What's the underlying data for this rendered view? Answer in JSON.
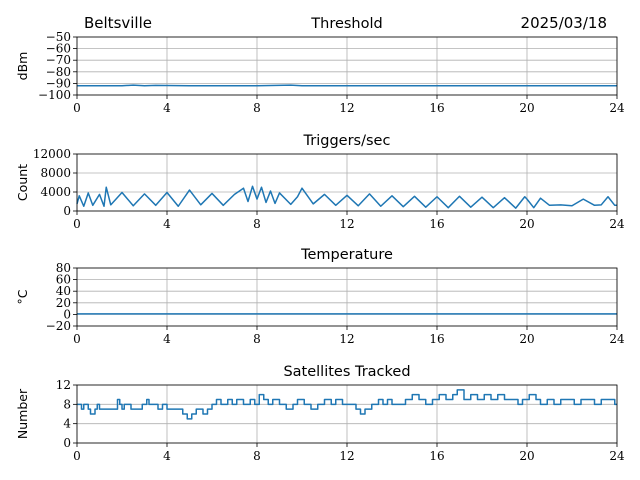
{
  "header": {
    "left": "Beltsville",
    "right": "2025/03/18"
  },
  "chart_data": [
    {
      "type": "line",
      "title": "Threshold",
      "ylabel": "dBm",
      "xlim": [
        0,
        24
      ],
      "ylim": [
        -100,
        -50
      ],
      "xticks": [
        0,
        4,
        8,
        12,
        16,
        20,
        24
      ],
      "yticks": [
        -100,
        -90,
        -80,
        -70,
        -60,
        -50
      ],
      "grid": true,
      "series": [
        {
          "x": [
            0,
            2,
            2.5,
            3,
            3.5,
            5,
            8,
            9.5,
            10,
            12,
            16,
            20,
            24
          ],
          "y": [
            -92,
            -92,
            -91.5,
            -92,
            -91.7,
            -92,
            -92,
            -91.5,
            -92,
            -92,
            -92,
            -92,
            -92
          ]
        }
      ]
    },
    {
      "type": "line",
      "title": "Triggers/sec",
      "ylabel": "Count",
      "xlim": [
        0,
        24
      ],
      "ylim": [
        0,
        12000
      ],
      "xticks": [
        0,
        4,
        8,
        12,
        16,
        20,
        24
      ],
      "yticks": [
        0,
        4000,
        8000,
        12000
      ],
      "grid": true,
      "series": [
        {
          "x": [
            0,
            0.1,
            0.3,
            0.5,
            0.7,
            1.0,
            1.2,
            1.3,
            1.5,
            2.0,
            2.5,
            3.0,
            3.5,
            4.0,
            4.5,
            5.0,
            5.5,
            6.0,
            6.5,
            7.0,
            7.4,
            7.6,
            7.8,
            8.0,
            8.2,
            8.4,
            8.6,
            8.8,
            9.0,
            9.5,
            9.8,
            10.0,
            10.5,
            11.0,
            11.5,
            12.0,
            12.5,
            13.0,
            13.5,
            14.0,
            14.5,
            15.0,
            15.5,
            16.0,
            16.5,
            17.0,
            17.5,
            18.0,
            18.5,
            19.0,
            19.5,
            19.9,
            20.0,
            20.3,
            20.6,
            21.0,
            21.5,
            22.0,
            22.5,
            23.0,
            23.3,
            23.6,
            23.9,
            24.0
          ],
          "y": [
            1500,
            3200,
            1000,
            3800,
            1200,
            3500,
            1000,
            5000,
            1300,
            3900,
            1100,
            3600,
            1200,
            3900,
            1000,
            4400,
            1300,
            3700,
            1200,
            3500,
            4800,
            2000,
            5200,
            2500,
            5000,
            1800,
            4200,
            1600,
            3800,
            1400,
            3000,
            4800,
            1500,
            3500,
            1200,
            3300,
            1100,
            3600,
            1000,
            3200,
            900,
            3100,
            800,
            3000,
            700,
            3100,
            800,
            2900,
            700,
            2800,
            600,
            3000,
            2500,
            700,
            2700,
            1200,
            1300,
            1100,
            2500,
            1200,
            1300,
            3000,
            1200,
            1200
          ]
        }
      ]
    },
    {
      "type": "line",
      "title": "Temperature",
      "ylabel": "°C",
      "xlim": [
        0,
        24
      ],
      "ylim": [
        -20,
        80
      ],
      "xticks": [
        0,
        4,
        8,
        12,
        16,
        20,
        24
      ],
      "yticks": [
        -20,
        0,
        20,
        40,
        60,
        80
      ],
      "grid": true,
      "series": [
        {
          "x": [
            0,
            24
          ],
          "y": [
            1,
            1
          ]
        }
      ]
    },
    {
      "type": "line",
      "title": "Satellites Tracked",
      "ylabel": "Number",
      "xlim": [
        0,
        24
      ],
      "ylim": [
        0,
        12
      ],
      "xticks": [
        0,
        4,
        8,
        12,
        16,
        20,
        24
      ],
      "yticks": [
        0,
        4,
        8,
        12
      ],
      "grid": true,
      "step": true,
      "series": [
        {
          "x": [
            0,
            0.2,
            0.3,
            0.5,
            0.6,
            0.8,
            0.9,
            1.0,
            1.3,
            1.6,
            1.8,
            1.9,
            2.0,
            2.1,
            2.4,
            2.6,
            2.9,
            3.1,
            3.2,
            3.6,
            3.8,
            4.0,
            4.5,
            4.7,
            4.9,
            5.1,
            5.3,
            5.6,
            5.8,
            6.0,
            6.2,
            6.4,
            6.7,
            6.9,
            7.1,
            7.4,
            7.7,
            7.9,
            8.1,
            8.3,
            8.5,
            8.7,
            9.0,
            9.3,
            9.6,
            9.8,
            10.1,
            10.4,
            10.7,
            11.0,
            11.3,
            11.5,
            11.8,
            12.0,
            12.4,
            12.6,
            12.8,
            13.1,
            13.4,
            13.6,
            13.8,
            14.0,
            14.3,
            14.6,
            14.9,
            15.2,
            15.5,
            15.8,
            16.1,
            16.4,
            16.7,
            16.9,
            17.2,
            17.5,
            17.8,
            18.1,
            18.4,
            18.7,
            19.0,
            19.3,
            19.6,
            19.8,
            20.1,
            20.4,
            20.6,
            20.9,
            21.2,
            21.5,
            21.8,
            22.1,
            22.4,
            22.7,
            23.0,
            23.3,
            23.6,
            23.9,
            24.0
          ],
          "y": [
            8,
            7,
            8,
            7,
            6,
            7,
            8,
            7,
            7,
            7,
            9,
            8,
            7,
            8,
            7,
            7,
            8,
            9,
            8,
            7,
            8,
            7,
            7,
            6,
            5,
            6,
            7,
            6,
            7,
            8,
            9,
            8,
            9,
            8,
            9,
            8,
            9,
            8,
            10,
            9,
            8,
            9,
            8,
            7,
            8,
            9,
            8,
            7,
            8,
            9,
            8,
            9,
            8,
            8,
            7,
            6,
            7,
            8,
            9,
            8,
            9,
            8,
            8,
            9,
            10,
            9,
            8,
            9,
            10,
            9,
            10,
            11,
            9,
            10,
            9,
            10,
            9,
            10,
            9,
            9,
            8,
            9,
            10,
            9,
            8,
            9,
            8,
            9,
            9,
            8,
            9,
            9,
            8,
            9,
            9,
            8,
            8
          ]
        }
      ]
    }
  ]
}
